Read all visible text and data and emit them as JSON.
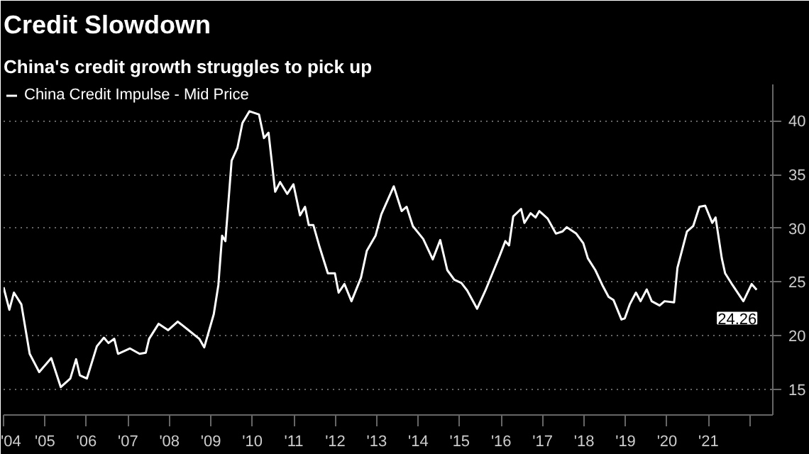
{
  "chart_data": {
    "type": "line",
    "title": "Credit Slowdown",
    "subtitle": "China's credit growth struggles to pick up",
    "x": [
      2004.0,
      2004.14,
      2004.25,
      2004.43,
      2004.63,
      2004.86,
      2005.15,
      2005.38,
      2005.61,
      2005.75,
      2005.84,
      2006.01,
      2006.25,
      2006.42,
      2006.53,
      2006.67,
      2006.76,
      2007.05,
      2007.28,
      2007.43,
      2007.51,
      2007.74,
      2007.97,
      2008.2,
      2008.43,
      2008.72,
      2008.84,
      2009.07,
      2009.18,
      2009.27,
      2009.35,
      2009.5,
      2009.64,
      2009.76,
      2009.93,
      2010.16,
      2010.28,
      2010.39,
      2010.55,
      2010.67,
      2010.84,
      2010.99,
      2011.15,
      2011.27,
      2011.36,
      2011.47,
      2011.61,
      2011.82,
      2011.99,
      2012.08,
      2012.22,
      2012.39,
      2012.62,
      2012.76,
      2012.97,
      2013.11,
      2013.41,
      2013.6,
      2013.72,
      2013.87,
      2014.12,
      2014.35,
      2014.53,
      2014.7,
      2014.87,
      2015.04,
      2015.18,
      2015.42,
      2015.62,
      2015.79,
      2015.96,
      2016.1,
      2016.19,
      2016.29,
      2016.48,
      2016.56,
      2016.71,
      2016.83,
      2016.92,
      2017.12,
      2017.32,
      2017.48,
      2017.58,
      2017.81,
      2017.98,
      2018.09,
      2018.27,
      2018.44,
      2018.59,
      2018.71,
      2018.9,
      2018.98,
      2019.1,
      2019.25,
      2019.36,
      2019.51,
      2019.63,
      2019.82,
      2019.94,
      2020.17,
      2020.25,
      2020.48,
      2020.63,
      2020.78,
      2020.92,
      2021.09,
      2021.17,
      2021.32,
      2021.4,
      2021.58,
      2021.84,
      2022.04,
      2022.16
    ],
    "series": [
      {
        "name": "China Credit Impulse - Mid Price",
        "color": "#ffffff",
        "values": [
          24.5,
          22.4,
          24.0,
          22.9,
          18.3,
          16.6,
          17.9,
          15.2,
          16.0,
          17.8,
          16.3,
          16.0,
          19.0,
          19.8,
          19.3,
          19.7,
          18.3,
          18.8,
          18.3,
          18.4,
          19.7,
          21.1,
          20.5,
          21.3,
          20.6,
          19.7,
          18.9,
          22.0,
          24.7,
          29.3,
          28.8,
          36.3,
          37.5,
          39.8,
          40.9,
          40.6,
          38.4,
          38.9,
          33.4,
          34.3,
          33.2,
          34.1,
          31.2,
          32.0,
          30.3,
          30.3,
          28.4,
          25.8,
          25.8,
          24.0,
          24.8,
          23.2,
          25.4,
          27.9,
          29.3,
          31.3,
          33.9,
          31.6,
          32.0,
          30.2,
          29.0,
          27.1,
          28.9,
          26.1,
          25.2,
          24.9,
          24.2,
          22.5,
          24.2,
          25.8,
          27.4,
          28.8,
          28.4,
          31.1,
          31.8,
          30.5,
          31.4,
          31.0,
          31.6,
          30.9,
          29.5,
          29.7,
          30.1,
          29.5,
          28.6,
          27.2,
          26.1,
          24.7,
          23.6,
          23.3,
          21.5,
          21.6,
          22.9,
          24.0,
          23.2,
          24.3,
          23.2,
          22.8,
          23.2,
          23.1,
          26.3,
          29.7,
          30.2,
          32.0,
          32.1,
          30.5,
          31.0,
          27.2,
          25.8,
          24.7,
          23.2,
          24.8,
          24.26
        ]
      }
    ],
    "annotations": [
      {
        "text": "24.26",
        "x": 2022.16,
        "y": 24.26
      }
    ],
    "xlim": [
      2004.0,
      2022.55
    ],
    "xticks": [
      {
        "value": 2004,
        "label": "'04"
      },
      {
        "value": 2005,
        "label": "'05"
      },
      {
        "value": 2006,
        "label": "'06"
      },
      {
        "value": 2007,
        "label": "'07"
      },
      {
        "value": 2008,
        "label": "'08"
      },
      {
        "value": 2009,
        "label": "'09"
      },
      {
        "value": 2010,
        "label": "'10"
      },
      {
        "value": 2011,
        "label": "'11"
      },
      {
        "value": 2012,
        "label": "'12"
      },
      {
        "value": 2013,
        "label": "'13"
      },
      {
        "value": 2014,
        "label": "'14"
      },
      {
        "value": 2015,
        "label": "'15"
      },
      {
        "value": 2016,
        "label": "'16"
      },
      {
        "value": 2017,
        "label": "'17"
      },
      {
        "value": 2018,
        "label": "'18"
      },
      {
        "value": 2019,
        "label": "'19"
      },
      {
        "value": 2020,
        "label": "'20"
      },
      {
        "value": 2021,
        "label": "'21"
      },
      {
        "value": 2022,
        "label": null
      }
    ],
    "ylim": [
      12.6,
      43.4
    ],
    "yticks": [
      15,
      20,
      25,
      30,
      35,
      40
    ],
    "grid": "y",
    "legend": "top left",
    "line_style": "solid",
    "marker": "none"
  }
}
